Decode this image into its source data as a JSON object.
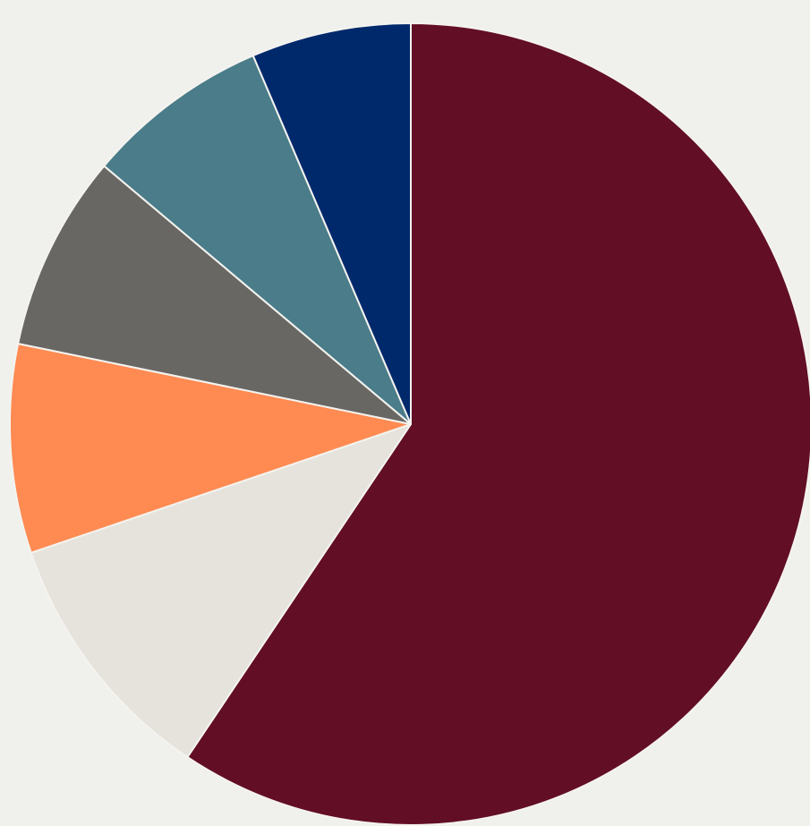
{
  "chart_data": {
    "type": "pie",
    "title": "",
    "legend": "none",
    "start_angle_deg": 0,
    "direction": "clockwise",
    "slices": [
      {
        "value": 60.0,
        "color": "#620e25"
      },
      {
        "value": 10.5,
        "color": "#e6e3dd"
      },
      {
        "value": 8.5,
        "color": "#ff8b52"
      },
      {
        "value": 8.0,
        "color": "#696764"
      },
      {
        "value": 7.5,
        "color": "#4a7c89"
      },
      {
        "value": 6.5,
        "color": "#00296b"
      }
    ]
  }
}
